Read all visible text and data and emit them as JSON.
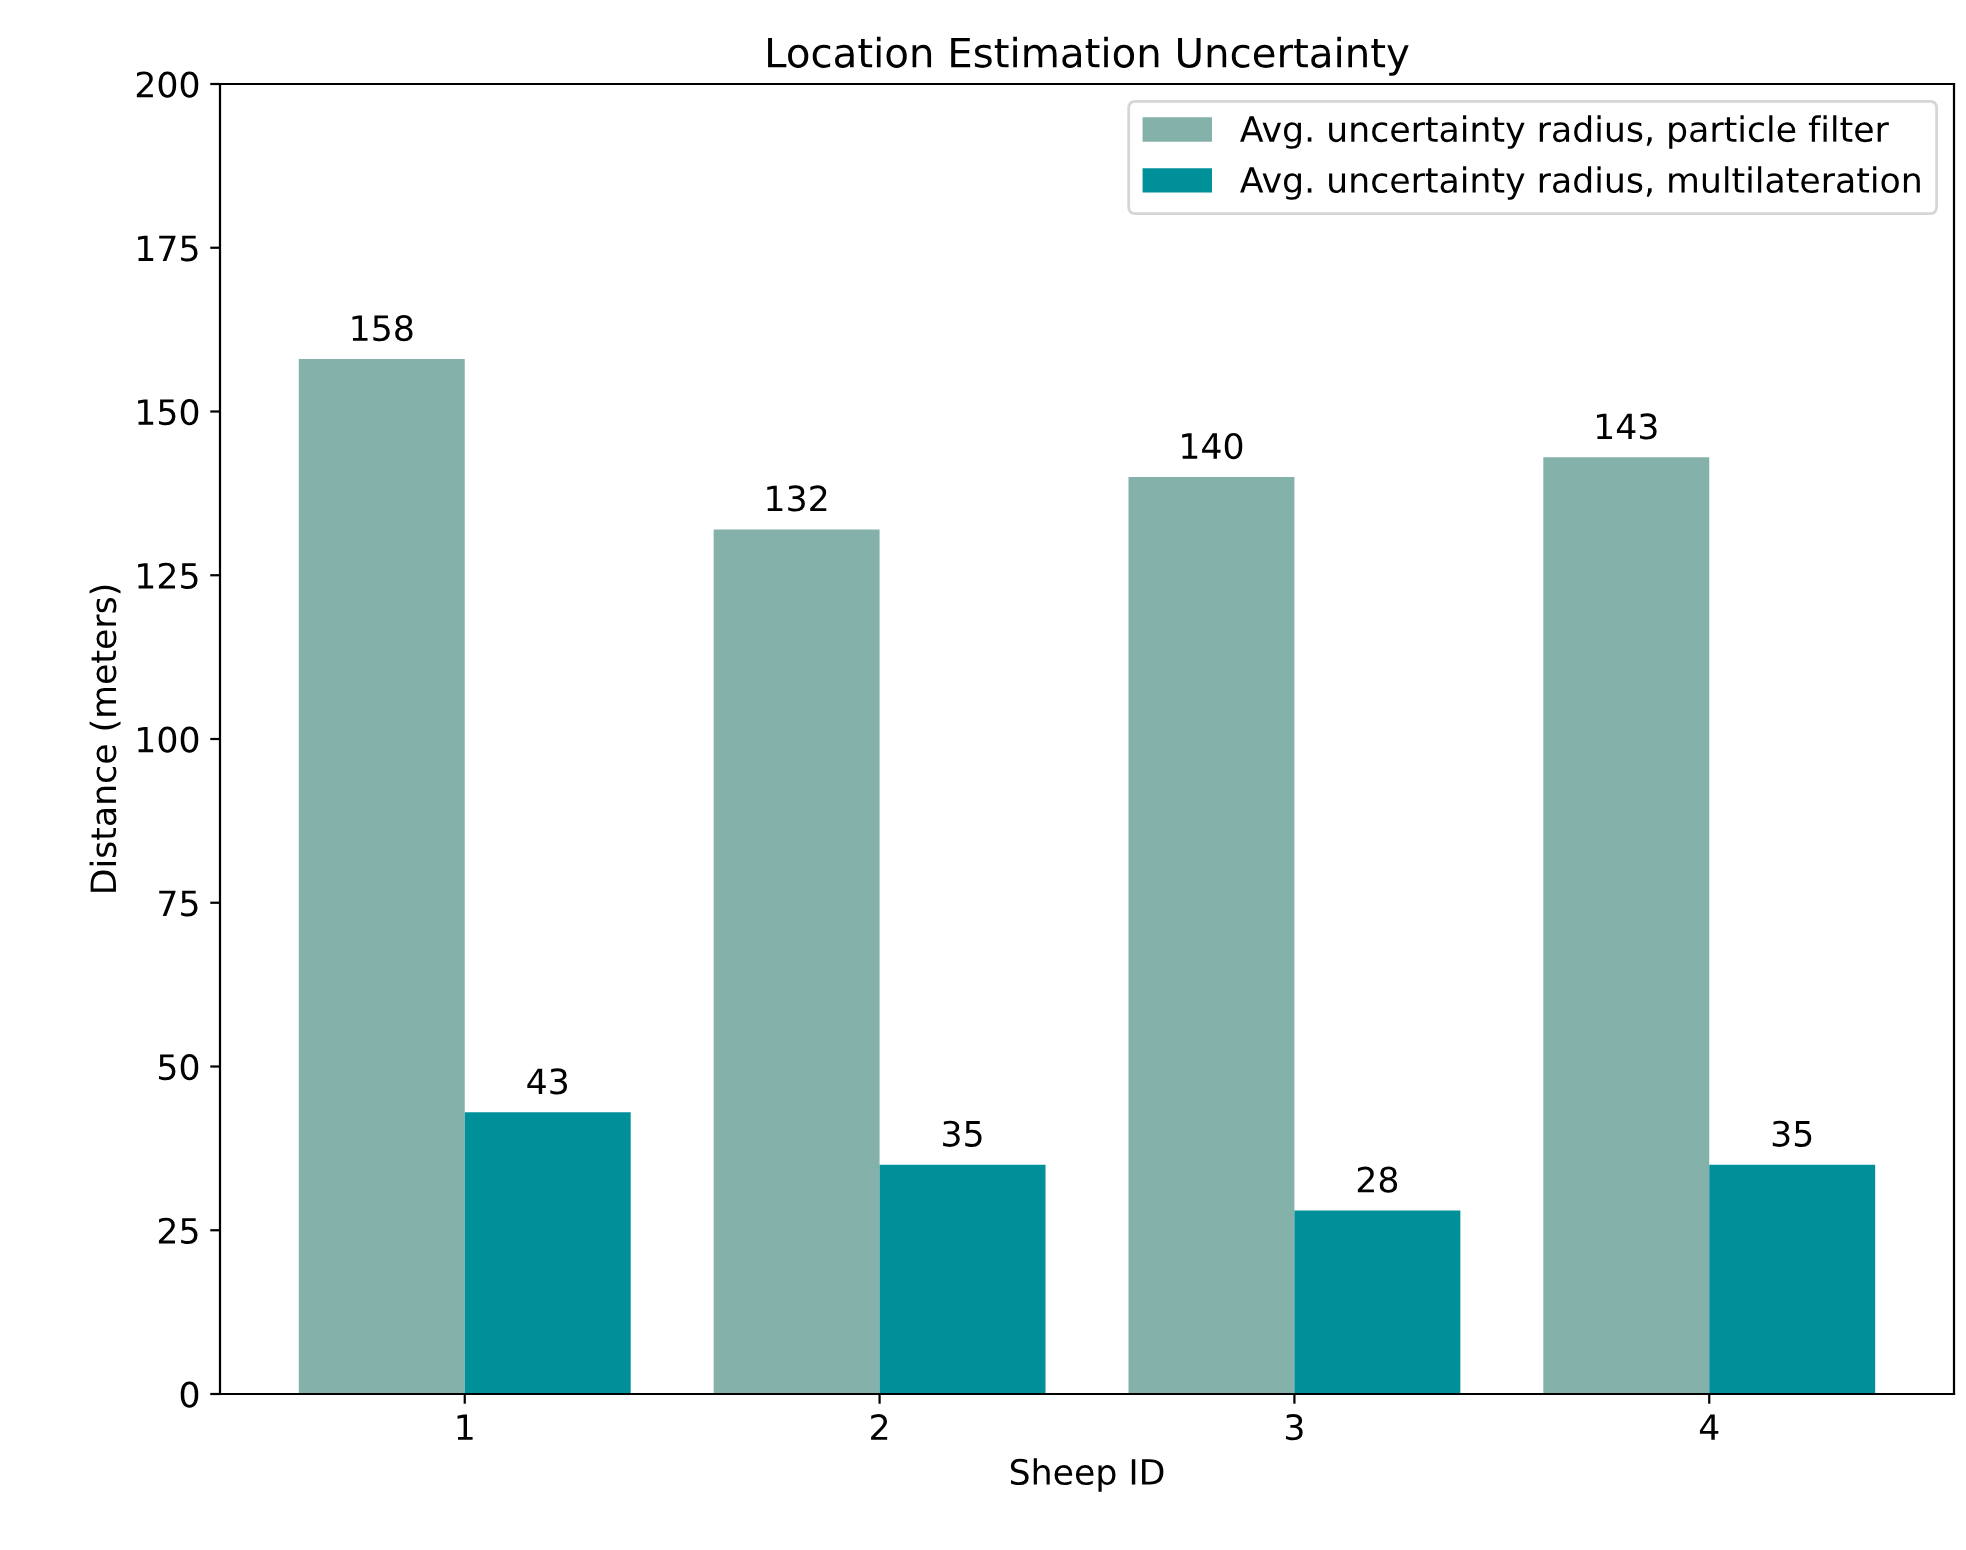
{
  "chart_data": {
    "type": "bar",
    "title": "Location Estimation Uncertainty",
    "xlabel": "Sheep ID",
    "ylabel": "Distance (meters)",
    "categories": [
      "1",
      "2",
      "3",
      "4"
    ],
    "series": [
      {
        "name": "Avg. uncertainty radius, particle filter",
        "color": "#84b1aa",
        "values": [
          158,
          132,
          140,
          143
        ]
      },
      {
        "name": "Avg. uncertainty radius, multilateration",
        "color": "#00909a",
        "values": [
          43,
          35,
          28,
          35
        ]
      }
    ],
    "ylim": [
      0,
      200
    ],
    "yticks": [
      0,
      25,
      50,
      75,
      100,
      125,
      150,
      175,
      200
    ],
    "data_labels": true,
    "legend": "top right",
    "grid": false
  }
}
